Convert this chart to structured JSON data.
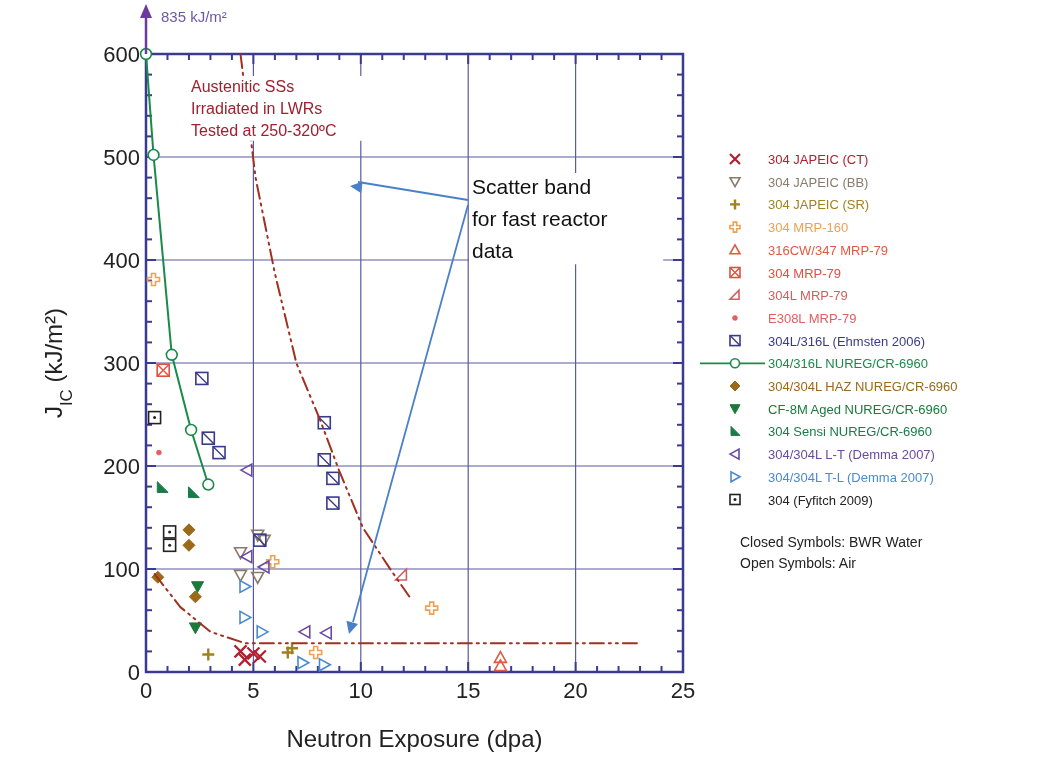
{
  "chart_data": {
    "type": "scatter",
    "xlabel": "Neutron Exposure (dpa)",
    "ylabel": "J$_{IC}$ (kJ/m²)",
    "xlim": [
      0,
      25
    ],
    "ylim": [
      0,
      600
    ],
    "xticks": [
      0,
      {
        "value": 1,
        "label": null
      },
      {
        "value": 2,
        "label": null
      },
      {
        "value": 3,
        "label": null
      },
      {
        "value": 4,
        "label": null
      },
      5,
      {
        "value": 6,
        "label": null
      },
      {
        "value": 7,
        "label": null
      },
      {
        "value": 8,
        "label": null
      },
      {
        "value": 9,
        "label": null
      },
      10,
      {
        "value": 11,
        "label": null
      },
      {
        "value": 12,
        "label": null
      },
      {
        "value": 13,
        "label": null
      },
      {
        "value": 14,
        "label": null
      },
      15,
      {
        "value": 16,
        "label": null
      },
      {
        "value": 17,
        "label": null
      },
      {
        "value": 18,
        "label": null
      },
      {
        "value": 19,
        "label": null
      },
      20,
      {
        "value": 21,
        "label": null
      },
      {
        "value": 22,
        "label": null
      },
      {
        "value": 23,
        "label": null
      },
      {
        "value": 24,
        "label": null
      },
      25
    ],
    "yticks": [
      0,
      {
        "value": 20,
        "label": null
      },
      {
        "value": 40,
        "label": null
      },
      {
        "value": 60,
        "label": null
      },
      {
        "value": 80,
        "label": null
      },
      100,
      {
        "value": 120,
        "label": null
      },
      {
        "value": 140,
        "label": null
      },
      {
        "value": 160,
        "label": null
      },
      {
        "value": 180,
        "label": null
      },
      200,
      {
        "value": 220,
        "label": null
      },
      {
        "value": 240,
        "label": null
      },
      {
        "value": 260,
        "label": null
      },
      {
        "value": 280,
        "label": null
      },
      300,
      {
        "value": 320,
        "label": null
      },
      {
        "value": 340,
        "label": null
      },
      {
        "value": 360,
        "label": null
      },
      {
        "value": 380,
        "label": null
      },
      400,
      {
        "value": 420,
        "label": null
      },
      {
        "value": 440,
        "label": null
      },
      {
        "value": 460,
        "label": null
      },
      {
        "value": 480,
        "label": null
      },
      500,
      {
        "value": 520,
        "label": null
      },
      {
        "value": 540,
        "label": null
      },
      {
        "value": 560,
        "label": null
      },
      {
        "value": 580,
        "label": null
      },
      600
    ],
    "grid": true,
    "legend": "right",
    "annotations": [
      "835 kJ/m²",
      "Austenitic SSs\nIrradiated in LWRs\nTested at 250-320ºC",
      "Scatter band\nfor fast reactor\ndata",
      "Closed Symbols: BWR Water",
      "Open Symbols: Air"
    ],
    "series": [
      {
        "name": "304 JAPEIC (CT)",
        "marker": "x",
        "color": "#b22030",
        "x": [
          4.4,
          4.6,
          5.0,
          5.3
        ],
        "values": [
          20,
          12,
          18,
          15
        ]
      },
      {
        "name": "304 JAPEIC (BB)",
        "marker": "triangle-down",
        "color": "#8a7a6a",
        "x": [
          5.2,
          4.4,
          5.2,
          4.4,
          5.5
        ],
        "values": [
          133,
          116,
          92,
          94,
          128
        ]
      },
      {
        "name": "304 JAPEIC (SR)",
        "marker": "plus",
        "color": "#a08020",
        "x": [
          2.9,
          6.6,
          6.8
        ],
        "values": [
          17,
          19,
          23
        ]
      },
      {
        "name": "304 MRP-160",
        "marker": "cross",
        "color": "#f0a050",
        "x": [
          0.35,
          5.9,
          7.9,
          13.3
        ],
        "values": [
          381,
          107,
          19,
          62
        ]
      },
      {
        "name": "316CW/347 MRP-79",
        "marker": "triangle",
        "color": "#e05a40",
        "x": [
          16.5,
          16.5
        ],
        "values": [
          14,
          6
        ]
      },
      {
        "name": "304 MRP-79",
        "marker": "square-x",
        "color": "#e05040",
        "x": [
          0.8
        ],
        "values": [
          293
        ]
      },
      {
        "name": "304L MRP-79",
        "marker": "triangle-corner",
        "color": "#d06060",
        "x": [
          11.9
        ],
        "values": [
          94
        ]
      },
      {
        "name": "E308L MRP-79",
        "marker": "circle",
        "color": "#e06060",
        "x": [
          0.6
        ],
        "values": [
          213
        ]
      },
      {
        "name": "304L/316L (Ehmsten 2006)",
        "marker": "square-slash",
        "color": "#3a3a8a",
        "x": [
          2.6,
          2.9,
          3.4,
          8.3,
          8.3,
          8.7,
          8.7,
          5.3
        ],
        "values": [
          285,
          227,
          213,
          242,
          206,
          188,
          164,
          128
        ]
      },
      {
        "name": "304/316L NUREG/CR-6960",
        "type": "line",
        "marker": "circle",
        "color": "#1a8a4a",
        "x": [
          0,
          0.35,
          1.2,
          2.1,
          2.9
        ],
        "values": [
          600,
          502,
          308,
          235,
          182
        ]
      },
      {
        "name": "304/304L HAZ NUREG/CR-6960",
        "marker": "diamond-filled",
        "color": "#9a6a1a",
        "x": [
          0.55,
          2.3,
          2.0,
          2.0
        ],
        "values": [
          92,
          73,
          138,
          123
        ]
      },
      {
        "name": "CF-8M Aged NUREG/CR-6960",
        "marker": "triangle-down-filled",
        "color": "#1a7a3a",
        "x": [
          2.4,
          2.3
        ],
        "values": [
          83,
          43
        ]
      },
      {
        "name": "304 Sensi NUREG/CR-6960",
        "marker": "triangle-wedge-filled",
        "color": "#1a7a4a",
        "x": [
          0.75,
          2.2
        ],
        "values": [
          179,
          174
        ]
      },
      {
        "name": "304/304L L-T (Demma 2007)",
        "marker": "triangle-left",
        "color": "#6a4aa0",
        "x": [
          4.7,
          4.7,
          5.5,
          7.4,
          8.4
        ],
        "values": [
          196,
          112,
          102,
          39,
          38
        ]
      },
      {
        "name": "304/304L T-L (Demma 2007)",
        "marker": "triangle-right",
        "color": "#4a8ad0",
        "x": [
          4.6,
          4.6,
          5.4,
          7.3,
          8.3
        ],
        "values": [
          83,
          53,
          39,
          9,
          7
        ]
      },
      {
        "name": "304 (Fyfitch 2009)",
        "marker": "square-dot",
        "color": "#222222",
        "x": [
          0.4,
          1.1,
          1.1
        ],
        "values": [
          247,
          136,
          123
        ]
      },
      {
        "type": "line",
        "marker": "none",
        "line_style": "dashed",
        "color": "#a03020",
        "x": [
          4.4,
          5.1,
          6.0,
          7.0,
          8.1,
          9.0,
          10.1,
          11.4,
          12.3
        ],
        "values": [
          600,
          480,
          387,
          300,
          245,
          195,
          140,
          99,
          72
        ]
      },
      {
        "type": "line",
        "marker": "none",
        "line_style": "dashed",
        "color": "#a03020",
        "x": [
          0.4,
          1.6,
          3.0,
          4.6,
          23
        ],
        "values": [
          95,
          63,
          39,
          28,
          28
        ]
      }
    ]
  }
}
